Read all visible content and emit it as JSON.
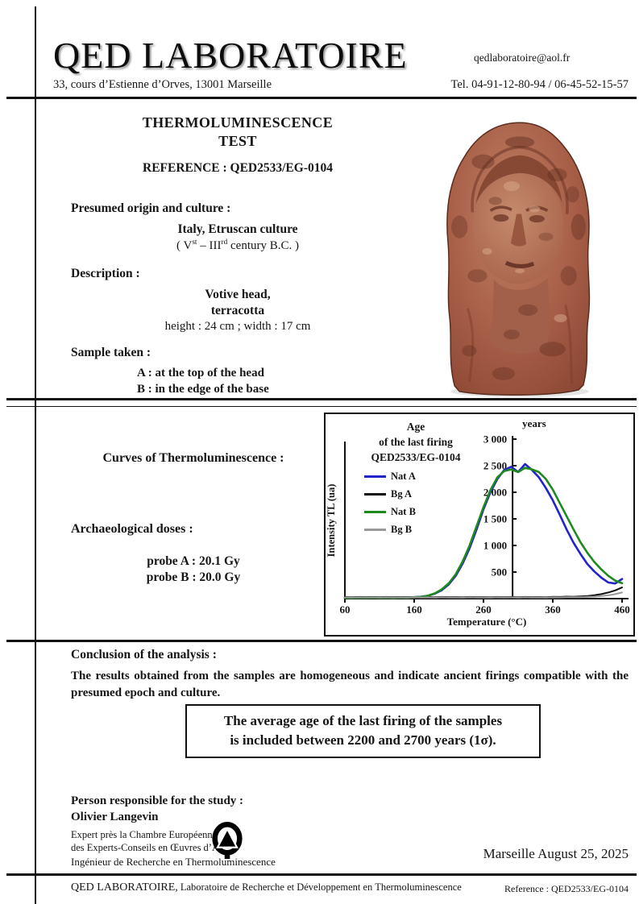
{
  "header": {
    "company": "QED LABORATOIRE",
    "email": "qedlaboratoire@aol.fr",
    "address": "33, cours d’Estienne d’Orves, 13001 Marseille",
    "phone": "Tel. 04-91-12-80-94 / 06-45-52-15-57"
  },
  "title": {
    "line1": "THERMOLUMINESCENCE",
    "line2": "TEST",
    "reference": "REFERENCE : QED2533/EG-0104"
  },
  "origin": {
    "label": "Presumed origin and culture :",
    "value": "Italy, Etruscan culture",
    "period": {
      "p1": "( V",
      "sup1": "st",
      "p2": " – III",
      "sup2": "rd",
      "p3": " century B.C. )"
    }
  },
  "description": {
    "label": "Description :",
    "line1": "Votive head,",
    "line2": "terracotta",
    "dimensions": "height : 24 cm ; width : 17 cm"
  },
  "sample": {
    "label": "Sample taken :",
    "a": "A : at the top of the head",
    "b": "B : in the edge of the base"
  },
  "curves_label": "Curves of Thermoluminescence :",
  "doses": {
    "label": "Archaeological doses :",
    "probe_a": "probe A : 20.1 Gy",
    "probe_b": "probe B : 20.0 Gy"
  },
  "chart_data": {
    "type": "line",
    "title_lines": [
      "Age",
      "of the last firing",
      "QED2533/EG-0104"
    ],
    "xlabel": "Temperature (°C)",
    "ylabel": "Intensity TL (ua)",
    "secondary_axis_label": "years",
    "xlim": [
      60,
      460
    ],
    "x_ticks": [
      60,
      160,
      260,
      360,
      460
    ],
    "years_lim": [
      0,
      3000
    ],
    "years_tick_values": [
      3000,
      2500,
      2000,
      1500,
      1000,
      500
    ],
    "years_tick_labels": [
      "3 000",
      "2 500",
      "2 000",
      "1 500",
      "1 000",
      "500"
    ],
    "years_axis_temp": 302,
    "grid": false,
    "legend_position": "upper-left",
    "x": [
      60,
      70,
      80,
      90,
      100,
      110,
      120,
      130,
      140,
      150,
      160,
      170,
      180,
      190,
      200,
      210,
      220,
      230,
      240,
      250,
      260,
      270,
      280,
      290,
      300,
      310,
      320,
      330,
      340,
      350,
      360,
      370,
      380,
      390,
      400,
      410,
      420,
      430,
      440,
      450,
      460
    ],
    "series": [
      {
        "name": "Nat A",
        "color": "#2323cc",
        "values": [
          20,
          18,
          24,
          19,
          25,
          20,
          24,
          19,
          25,
          22,
          28,
          35,
          55,
          95,
          160,
          270,
          430,
          660,
          950,
          1300,
          1680,
          2000,
          2250,
          2420,
          2480,
          2380,
          2530,
          2420,
          2280,
          2080,
          1850,
          1580,
          1300,
          1050,
          840,
          650,
          510,
          395,
          305,
          285,
          370
        ]
      },
      {
        "name": "Bg A",
        "color": "#111111",
        "values": [
          30,
          28,
          32,
          29,
          31,
          28,
          32,
          29,
          31,
          28,
          32,
          29,
          31,
          28,
          32,
          29,
          31,
          28,
          32,
          29,
          31,
          28,
          32,
          29,
          31,
          28,
          32,
          29,
          31,
          28,
          35,
          32,
          38,
          36,
          42,
          50,
          65,
          85,
          115,
          155,
          210
        ]
      },
      {
        "name": "Nat B",
        "color": "#1e8a1e",
        "values": [
          15,
          14,
          18,
          15,
          19,
          15,
          18,
          14,
          19,
          17,
          25,
          32,
          55,
          100,
          175,
          290,
          460,
          700,
          1000,
          1360,
          1720,
          2040,
          2280,
          2400,
          2430,
          2380,
          2460,
          2430,
          2380,
          2250,
          2050,
          1800,
          1550,
          1300,
          1060,
          860,
          690,
          550,
          430,
          340,
          290
        ]
      },
      {
        "name": "Bg B",
        "color": "#999999",
        "values": [
          22,
          20,
          24,
          21,
          23,
          20,
          24,
          21,
          23,
          20,
          24,
          21,
          23,
          20,
          24,
          21,
          23,
          20,
          24,
          21,
          23,
          20,
          24,
          21,
          23,
          20,
          24,
          21,
          23,
          20,
          24,
          22,
          26,
          25,
          28,
          32,
          38,
          48,
          62,
          85,
          115
        ]
      }
    ]
  },
  "conclusion": {
    "label": "Conclusion of the analysis :",
    "text": "The results obtained from the samples are homogeneous and indicate ancient firings compatible with the presumed epoch and culture.",
    "box_line1": "The average age of the last firing of the samples",
    "box_line2": "is included between 2200 and 2700 years (1σ)."
  },
  "signature": {
    "label": "Person responsible for the study :",
    "name": "Olivier Langevin",
    "title1": "Expert près la Chambre Européenne",
    "title2": "des Experts-Conseils en Œuvres d’Art",
    "title3": "Ingénieur de Recherche en Thermoluminescence",
    "date": "Marseille August 25, 2025"
  },
  "footer": {
    "company": "QED LABORATOIRE,",
    "text": " Laboratoire de Recherche et Développement en Thermoluminescence",
    "reference": "Reference : QED2533/EG-0104"
  },
  "colors": {
    "ink": "#161616",
    "terracotta": "#a85f48",
    "terracotta_dark": "#5f2c1f",
    "terracotta_light": "#d2997c"
  }
}
